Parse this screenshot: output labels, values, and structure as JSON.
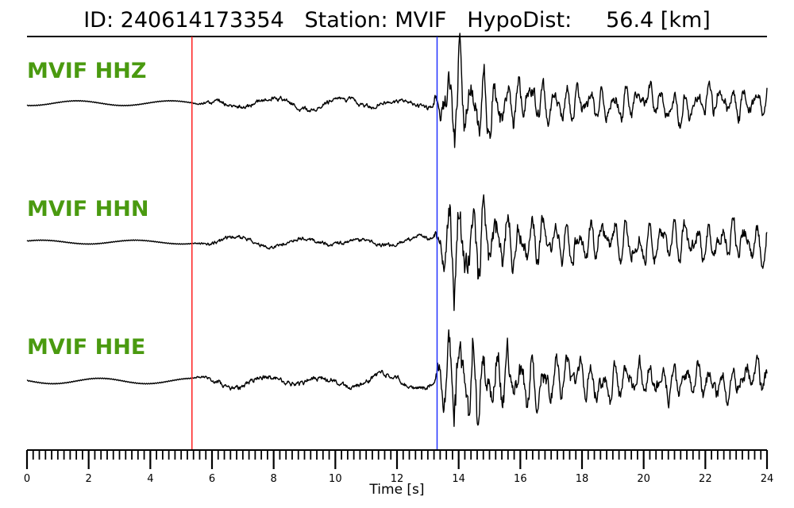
{
  "title": "ID: 240614173354   Station: MVIF   HypoDist:     56.4 [km]",
  "chart_data": {
    "type": "line",
    "xlabel": "Time [s]",
    "xlim": [
      0,
      24
    ],
    "xticks": [
      "0",
      "2",
      "4",
      "6",
      "8",
      "10",
      "12",
      "14",
      "16",
      "18",
      "20",
      "22",
      "24"
    ],
    "minor_tick_step": 0.2,
    "grid": false,
    "picks": [
      {
        "phase": "P",
        "time": 5.35,
        "color": "#ff2020"
      },
      {
        "phase": "S",
        "time": 13.3,
        "color": "#2233ff"
      }
    ],
    "series": [
      {
        "name": "MVIF HHZ",
        "pre_event_amplitude": 0.04,
        "p_coda_amplitude": 0.12,
        "s_peak_amplitude": 1.0,
        "s_coda_amplitude": 0.3
      },
      {
        "name": "MVIF HHN",
        "pre_event_amplitude": 0.03,
        "p_coda_amplitude": 0.09,
        "s_peak_amplitude": 1.0,
        "s_coda_amplitude": 0.35
      },
      {
        "name": "MVIF HHE",
        "pre_event_amplitude": 0.04,
        "p_coda_amplitude": 0.12,
        "s_peak_amplitude": 1.0,
        "s_coda_amplitude": 0.3
      }
    ]
  }
}
